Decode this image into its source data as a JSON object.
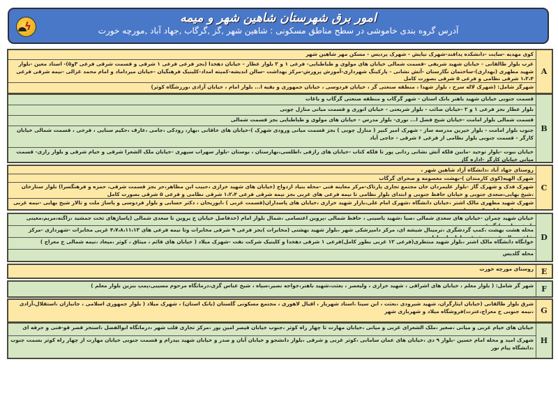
{
  "header": {
    "title": "امور برق شهرستان شاهین شهر و میمه",
    "subtitle": "آدرس گروه بندی خاموشی در سطح مناطق مسکونی : شاهین شهر ,گز ,گرگاب ,جهاد آباد ,مورچه خورت",
    "logo_icon": "electricity-company-logo"
  },
  "colors": {
    "header_blue": "#4a78c8",
    "yellow_group": "#fde8a6",
    "green_group": "#d6e7c3"
  },
  "groups": [
    {
      "letter": "A",
      "color": "yellow",
      "rows": [
        "کوی مهدیه -سایت -دانشکده پدافند-شهرک نیایش - شهرک پردیس - مسکن مهر شاهین شهر",
        "غرب بلوار طالقانی - خیابان شهید شریفی -قسمت شمالی خیابان های مولوی و طباطبایی- فرعی ۱ و ۲ بلوار عطار - خیابان دهخدا (بجز فرعی فرعی ۱ شرقی و قسمت شرقی فرعی ۳و۵)- استاد معین -بلوار شهید مطهری (بهداری)-ساختمان نگارستان -آتش نشانی - پارکینگ شهرداری-آموزش پرورش-مرکز بهداشت -سالن اندیشه-کمیته امداد-کلینیک فرهنگیان -خیابان میرداماد و امام محمد غزالی -نیمه شرقی فرعی ۱،۲،۴ شرقی نظامی و فرعی ۵ شرقی بصورت کامل",
        "شهرگز شامل: (شهرک لاله سرخ ، بلوار شهدا ، منطقه صنعتی گز ، خیابان فردوسی ، خیابان جمهوری و بقیه ا... بلوار امام ، خیابان آزادی ،ورزشگاه کوثر)"
      ]
    },
    {
      "letter": "B",
      "color": "green",
      "rows": [
        "قسمت جنوبی خیابان شهید باهنر بانک استان - شهر گرگاب و منطقه صنعتی گرگاب و باغات",
        "بلوار عطار بجز فرعی ۱ و ۲ -خیابان صائب - بلوار شریعتی - خیابان انوری و قسمت میانی منازل چوبی",
        "قسمت شمالی بلوار امامت -خیابان شیخ فضل ا... نوری- بلوار مدرس - خیابان های مولوی و طباطبایی بجز قسمت شمالی",
        "جنوب بلوار امامت - بلوار خیرین مدرسه ساز - شهرک امیر کبیر ( منازل چوبی ) بجز قسمت میانی ورودی شهرک )-خیابان های خاقانی ،بهار، رودکی ،جامی ،عارف ،حکیم سنایی ، فرخی ، قسمت شمالی خیابان کارگر - قسمت جنوبی بلوار نظامی از فرعی ۶ شرقی - حاجی آباد",
        "خیابان نبوت -بلوار توحید -مابین فلکه آتش نشانی ردانی پور تا فلکه کتاب -خیابان های رازقی ،اطلسی،بهارستان ، بوستان -بلوار سهراب سپهری -خیابان ملک الشعرا شرقی و خیام شرقی و بلوار رازی- قسمت میانی خیابان کارگر -اداره گاز"
      ]
    },
    {
      "letter": "C",
      "color": "yellow",
      "rows": [
        "روستای جهاد آباد ،دانشگاه آزاد شاهین شهر ،",
        "شهرک الهیه(کوی کارمندان )-بهشت معصومه و صحرای گرگاب",
        "شهرک فدک و شهرک گاز -بلوار علیمردان خان مجتمع تجاری پارتاک-مرکز معاینه فنی -محله بنیاد ازدواج (خیابان های شهید خرازی ،حبیب ابن مظاهر،حر بجز قسمت شرقی، حمزه و فرهنگسرا) بلوار ستارخان ،شیخ بهایی،سعدی جنوبی و خیابان حافظ جنوبی و ابتدای بلوار نظامی تا نیمه فرعی های غربی بجز نیمه شرقی فرعی ۱،۲،۴ شرقی نظامی و فرعی ۵ شرقی بصورت کامل",
        "شهرک شهید مطهری مالک اشتر ،خیابان دانشگاه ،شهرک امام علی،بازار شهید خرازی ،خیابان های پاسداران(قسمت غربی ) ،ابوریحان ، دکتر حسابی و بلوار فردوسی و پاساژ ملت و تالار شیخ بهایی -نیمه غربی فرعی های خیابان دکتر حسابی"
      ]
    },
    {
      "letter": "D",
      "color": "green",
      "rows": [
        "خیابان شهید چمران -خیابان های سعدی شمالی ،صبا ،شهید یاسینی ، حافظ شمالی ،پروین اعتصامی ،شمال بلوار امام (حدفاصل خیابان خ پروین تا سعدی شمالی (پاساژهای تخت جمشید ،زاگنه،مریم،معینی ،ابوذر و امیر )-گز قدسی",
        "محله هشت بهشت ،کمپ گردشگری ،ترمینال شیشه ای، مرکز دامپزشکی شهر ،بلوار شهید بهشتی (مخابرات )بجز فرعی ۹ شرقی مخابرات وتا نیمه فرعی های ۴،۷،۸،۱۱،۱۳ غربی مخابرات -شهرداری -مرکز شاهین مال -قسمت شرقی بلوار پاسداران",
        "خوابگاه دانشگاه مالک اشتر ،بلوار شهید منتظری(فرعی ۱۲ غربی بطور کامل)فرعی ۱ شرقی دهخدا و کلینیک شرکت نفت -شهرک میلاد ( خیابان های قائم ، میثاق ، کوثر ،میعاد ،نیمه شمالی خ معراج )",
        "محله گلدیس"
      ]
    },
    {
      "letter": "E",
      "color": "yellow",
      "rows": [
        "روستای مورچه خورت"
      ]
    },
    {
      "letter": "F",
      "color": "green",
      "rows": [
        "شهر گز شامل: ( بلوار معلم ، خیابان های اشراقی ، شهید خرازی ، ولیعصر ، بعثت،شهید باهنر،خواجه نصیر،سپاه ، شیخ عباس گزی،درمانگاه مرحوم مسیبی،پمپ بنزین بلوار معلم )"
      ]
    },
    {
      "letter": "G",
      "color": "yellow",
      "rows": [
        "شرق بلوار طالقانی (خیابان ایثارگران، شهید شیرودی ،بعثت ، ابن سینا ،استاد شهریار ، اقبال لاهوری ، مجتمع مسکونی گلستان (بانک استان) ، شهرک میلاد ( بلوار جمهوری اسلامی ، جانبازان ،استقلال،آزادی ،نیمه جنوبی خ معراج،عترت)فروشگاه میلاد و شهربازی شهر"
      ]
    },
    {
      "letter": "H",
      "color": "green",
      "rows": [
        "خیابان های خیام غربی و میانی ،صغیر ،ملک الشعرای غربی و میانی ،خیابان مهارت تا چهار راه کوثر ،جنوب خیابان قیصر امین پور ،مرکز تجاری قلب شهر ،درمانگاه ابوالفضل ،استخر قصر قو-فنی و حرفه ای",
        "شهرک امید و محله امام حسین -بلوار ۹ دی ،خیابان های عمان سامانی ،کوثر غربی و شرقی ،بلوار دانشجو و خیابان آبان و صدر و خیابان شهید بیدرام و قسمت جنوبی خیابان مهارت از چهار راه کوثر بسمت جنوب ،دانشگاه پیام نور"
      ]
    }
  ]
}
